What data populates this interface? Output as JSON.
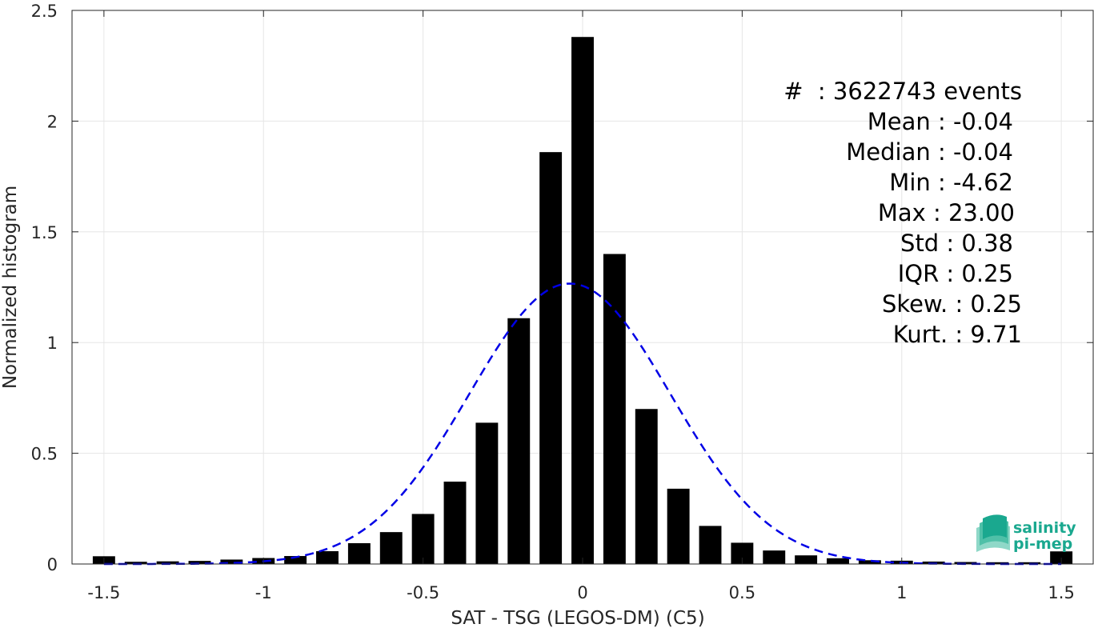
{
  "chart_data": {
    "type": "bar",
    "xlabel": "SAT - TSG (LEGOS-DM) (C5)",
    "ylabel": "Normalized histogram",
    "xlim": [
      -1.6,
      1.6
    ],
    "ylim": [
      0,
      2.5
    ],
    "xticks": [
      "-1.5",
      "-1",
      "-0.5",
      "0",
      "0.5",
      "1",
      "1.5"
    ],
    "yticks": [
      "0",
      "0.5",
      "1",
      "1.5",
      "2",
      "2.5"
    ],
    "grid": true,
    "bar_color": "#000000",
    "bins": [
      -1.5,
      -1.4,
      -1.3,
      -1.2,
      -1.1,
      -1.0,
      -0.9,
      -0.8,
      -0.7,
      -0.6,
      -0.5,
      -0.4,
      -0.3,
      -0.2,
      -0.1,
      0.0,
      0.1,
      0.2,
      0.3,
      0.4,
      0.5,
      0.6,
      0.7,
      0.8,
      0.9,
      1.0,
      1.1,
      1.2,
      1.3,
      1.4,
      1.5
    ],
    "values": [
      0.035,
      0.01,
      0.012,
      0.014,
      0.02,
      0.027,
      0.036,
      0.058,
      0.094,
      0.144,
      0.226,
      0.372,
      0.638,
      1.11,
      1.86,
      2.38,
      1.4,
      0.7,
      0.34,
      0.172,
      0.096,
      0.061,
      0.039,
      0.026,
      0.017,
      0.015,
      0.011,
      0.009,
      0.008,
      0.008,
      0.057
    ],
    "fit": {
      "type": "gaussian",
      "mean": -0.04,
      "std": 0.315,
      "color": "#0000e6",
      "style": "dashed"
    },
    "stats": {
      "events": "#  : 3622743 events",
      "mean": "Mean : -0.04",
      "median": "Median : -0.04",
      "min": "Min : -4.62",
      "max": "Max : 23.00",
      "std": "Std : 0.38",
      "iqr": "IQR : 0.25",
      "skew": "Skew. : 0.25",
      "kurt": "Kurt. : 9.71"
    }
  },
  "logo": {
    "line1": "salinity",
    "line2": "pi-mep",
    "color": "#1aa88f"
  }
}
